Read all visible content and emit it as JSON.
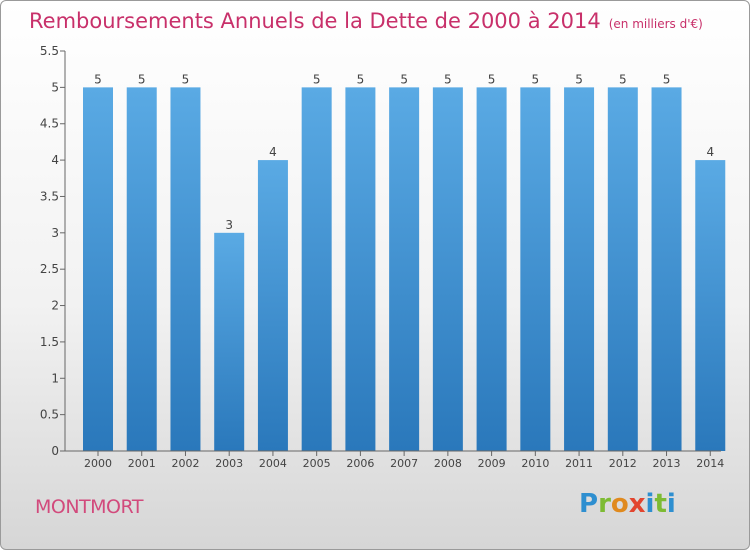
{
  "title": "Remboursements Annuels de la Dette de 2000 à 2014",
  "title_unit": "(en milliers d'€)",
  "commune": "MONTMORT",
  "logo": {
    "letters": [
      "P",
      "r",
      "o",
      "x",
      "i",
      "t",
      "i"
    ],
    "colors": [
      "#2e8fd0",
      "#7dbb33",
      "#e08a1e",
      "#e2452f",
      "#2e8fd0",
      "#7dbb33",
      "#2e8fd0"
    ]
  },
  "colors": {
    "bar_top": "#5aaae4",
    "bar_bottom": "#2a78bb",
    "title": "#c8306a",
    "commune": "#d24a7c"
  },
  "chart_data": {
    "type": "bar",
    "categories": [
      "2000",
      "2001",
      "2002",
      "2003",
      "2004",
      "2005",
      "2006",
      "2007",
      "2008",
      "2009",
      "2010",
      "2011",
      "2012",
      "2013",
      "2014"
    ],
    "values": [
      5,
      5,
      5,
      3,
      4,
      5,
      5,
      5,
      5,
      5,
      5,
      5,
      5,
      5,
      4
    ],
    "value_labels": [
      "5",
      "5",
      "5",
      "3",
      "4",
      "5",
      "5",
      "5",
      "5",
      "5",
      "5",
      "5",
      "5",
      "5",
      "4"
    ],
    "ylim": [
      0,
      5.5
    ],
    "yticks": [
      0,
      0.5,
      1,
      1.5,
      2,
      2.5,
      3,
      3.5,
      4,
      4.5,
      5,
      5.5
    ],
    "ytick_labels": [
      "0",
      "0.5",
      "1",
      "1.5",
      "2",
      "2.5",
      "3",
      "3.5",
      "4",
      "4.5",
      "5",
      "5.5"
    ],
    "grid": false
  }
}
